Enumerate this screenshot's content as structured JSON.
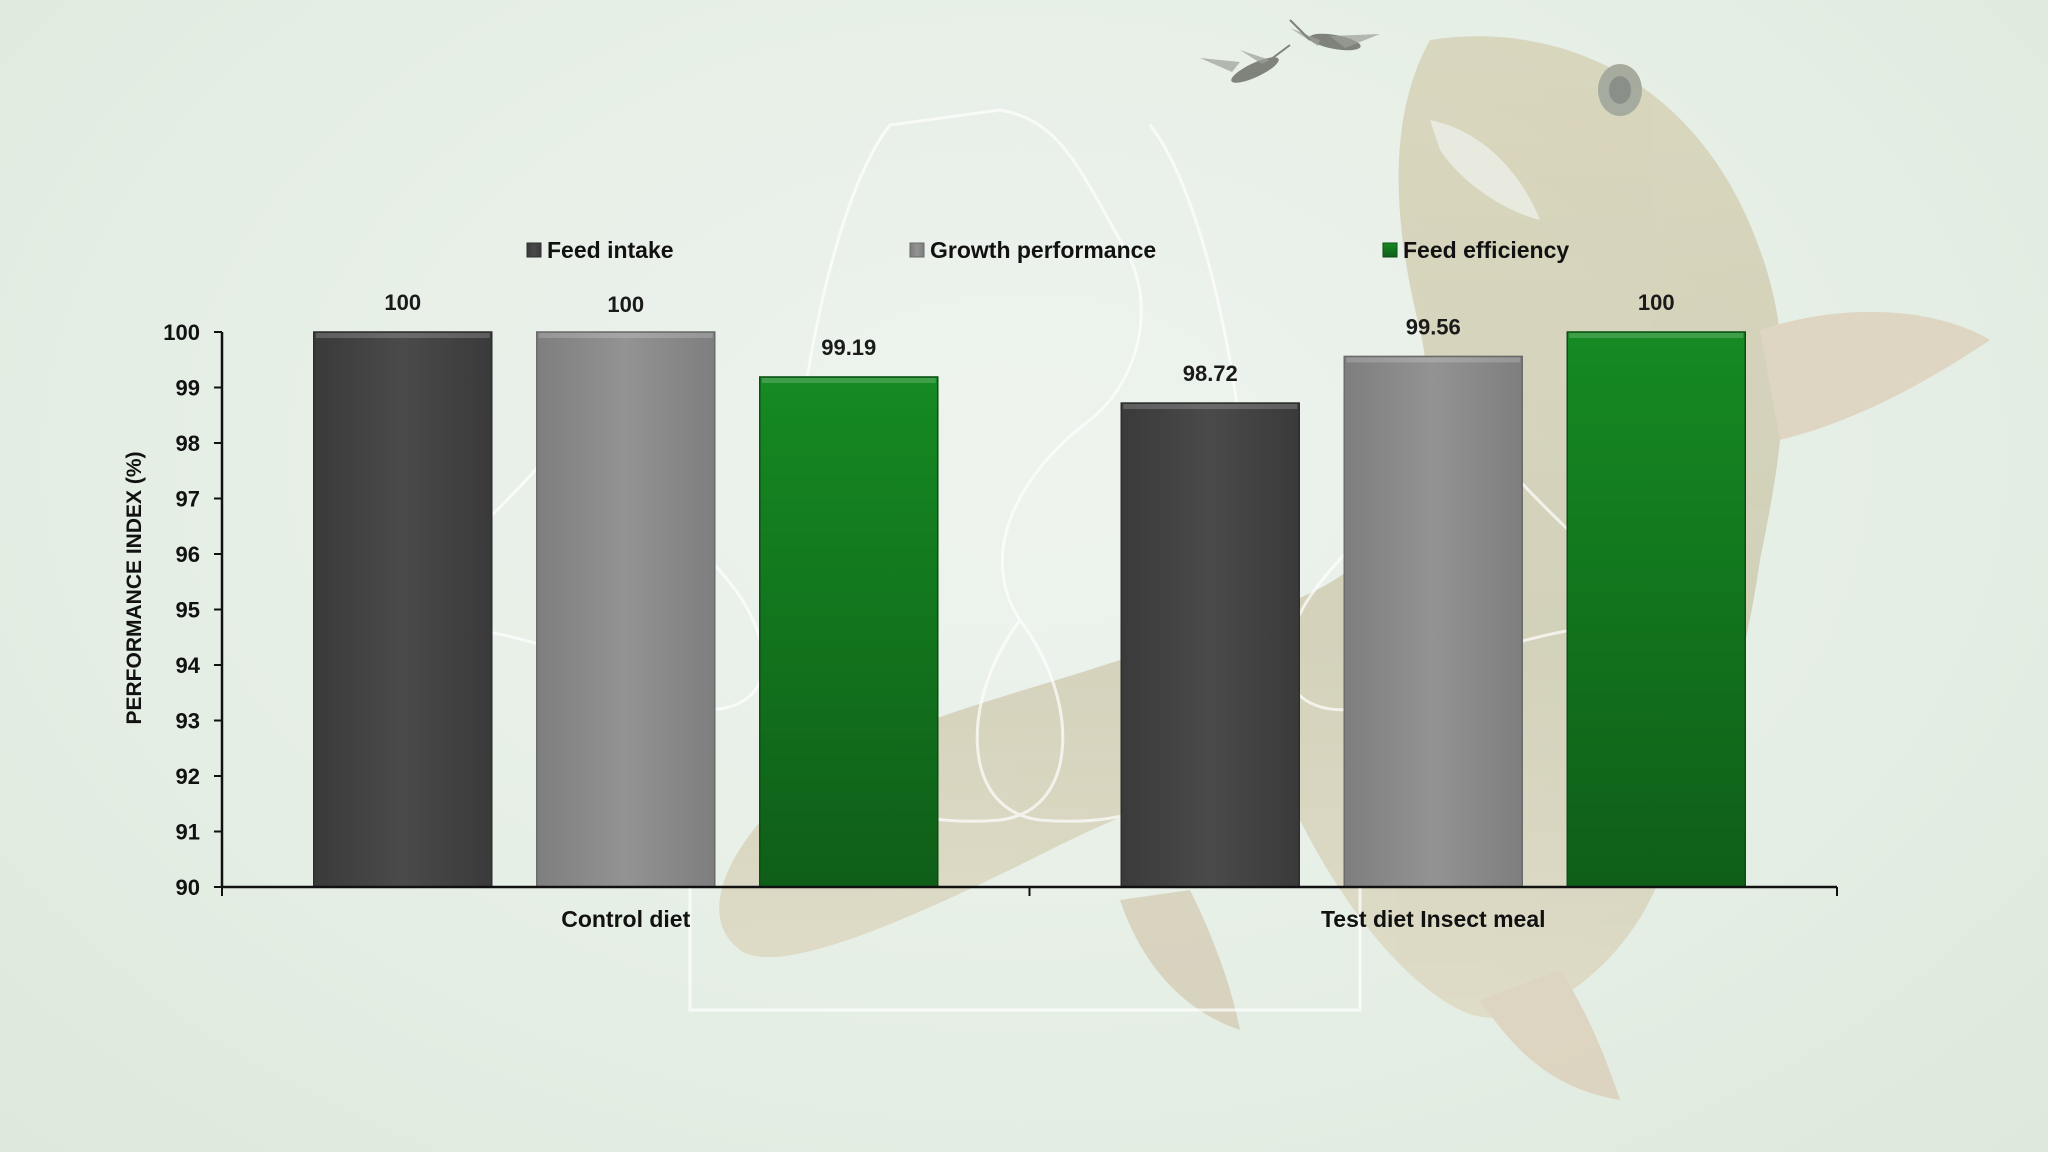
{
  "chart_data": {
    "type": "bar",
    "categories": [
      "Control diet",
      "Test diet Insect meal"
    ],
    "series": [
      {
        "name": "Feed intake",
        "values": [
          100,
          98.72
        ],
        "color": "#444444"
      },
      {
        "name": "Growth performance",
        "values": [
          100,
          99.56
        ],
        "color": "#8a8a8a"
      },
      {
        "name": "Feed efficiency",
        "values": [
          99.19,
          100
        ],
        "color": "#14801f"
      }
    ],
    "data_labels": [
      [
        "100",
        "98.72"
      ],
      [
        "100",
        "99.56"
      ],
      [
        "99.19",
        "100"
      ]
    ],
    "ylabel": "PERFORMANCE INDEX (%)",
    "ylim": [
      90,
      100
    ],
    "yticks": [
      90,
      91,
      92,
      93,
      94,
      95,
      96,
      97,
      98,
      99,
      100
    ],
    "legend_position": "top",
    "grid": false
  },
  "background": {
    "description_icons": [
      "trout-fish-image",
      "insect-flies-image",
      "watermark-logo"
    ]
  }
}
